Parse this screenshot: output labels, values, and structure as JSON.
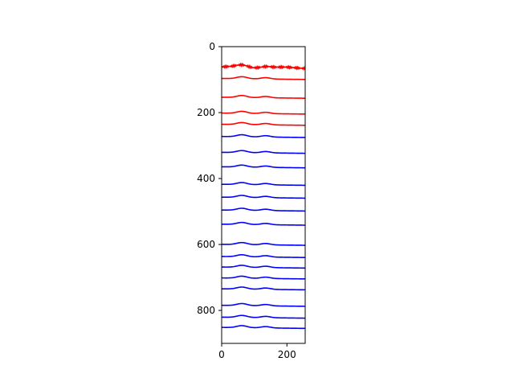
{
  "chart_data": {
    "type": "line",
    "title": "",
    "xlabel": "",
    "ylabel": "",
    "xlim": [
      0,
      256
    ],
    "ylim": [
      900,
      0
    ],
    "y_inverted": true,
    "grid": false,
    "legend": "none",
    "x_ticks": [
      0,
      200
    ],
    "y_ticks": [
      0,
      200,
      400,
      600,
      800
    ],
    "colors": {
      "red": "#ff0000",
      "blue": "#0000ff"
    },
    "series": [
      {
        "color": "#ff0000",
        "baseline": 63,
        "noisy": true
      },
      {
        "color": "#ff0000",
        "baseline": 98
      },
      {
        "color": "#ff0000",
        "baseline": 155
      },
      {
        "color": "#ff0000",
        "baseline": 203
      },
      {
        "color": "#ff0000",
        "baseline": 237
      },
      {
        "color": "#0000ff",
        "baseline": 274
      },
      {
        "color": "#0000ff",
        "baseline": 322
      },
      {
        "color": "#0000ff",
        "baseline": 366
      },
      {
        "color": "#0000ff",
        "baseline": 419
      },
      {
        "color": "#0000ff",
        "baseline": 458
      },
      {
        "color": "#0000ff",
        "baseline": 497
      },
      {
        "color": "#0000ff",
        "baseline": 540
      },
      {
        "color": "#0000ff",
        "baseline": 601
      },
      {
        "color": "#0000ff",
        "baseline": 638
      },
      {
        "color": "#0000ff",
        "baseline": 670
      },
      {
        "color": "#0000ff",
        "baseline": 703
      },
      {
        "color": "#0000ff",
        "baseline": 736
      },
      {
        "color": "#0000ff",
        "baseline": 786
      },
      {
        "color": "#0000ff",
        "baseline": 822
      },
      {
        "color": "#0000ff",
        "baseline": 853
      }
    ]
  }
}
